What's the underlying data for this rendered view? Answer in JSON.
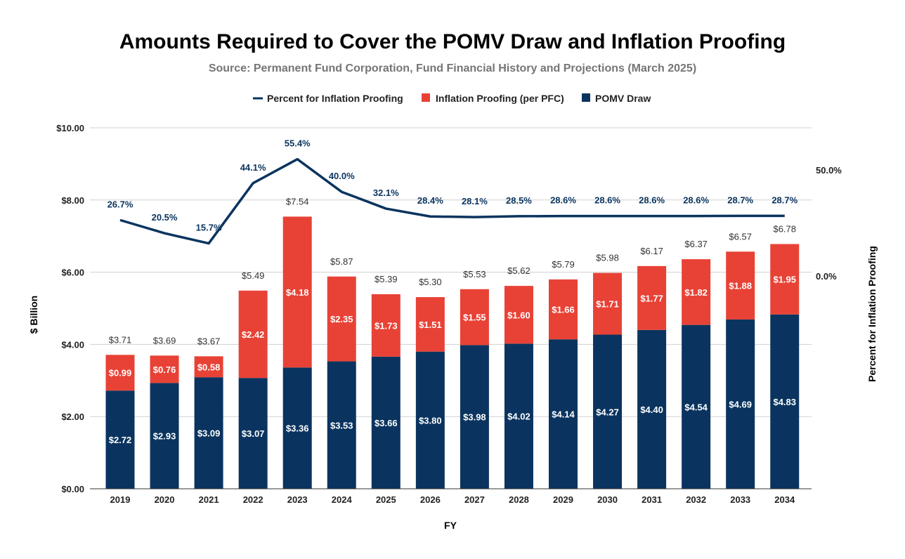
{
  "chart_data": {
    "type": "bar",
    "stacked": true,
    "title": "Amounts Required to Cover the POMV Draw and Inflation Proofing",
    "subtitle": "Source: Permanent Fund Corporation, Fund Financial History and Projections (March 2025)",
    "xlabel": "FY",
    "ylabel": "$ Billion",
    "y2label": "Percent for Inflation Proofing",
    "ylim": [
      0,
      10
    ],
    "y_ticks": [
      "$0.00",
      "$2.00",
      "$4.00",
      "$6.00",
      "$8.00",
      "$10.00"
    ],
    "y2_ticks": [
      "0.0%",
      "50.0%"
    ],
    "grid": true,
    "legend_position": "top",
    "categories": [
      "2019",
      "2020",
      "2021",
      "2022",
      "2023",
      "2024",
      "2025",
      "2026",
      "2027",
      "2028",
      "2029",
      "2030",
      "2031",
      "2032",
      "2033",
      "2034"
    ],
    "series": [
      {
        "name": "POMV Draw",
        "kind": "bar",
        "color": "#0a345f",
        "values": [
          2.72,
          2.93,
          3.09,
          3.07,
          3.36,
          3.53,
          3.66,
          3.8,
          3.98,
          4.02,
          4.14,
          4.27,
          4.4,
          4.54,
          4.69,
          4.83
        ],
        "labels": [
          "$2.72",
          "$2.93",
          "$3.09",
          "$3.07",
          "$3.36",
          "$3.53",
          "$3.66",
          "$3.80",
          "$3.98",
          "$4.02",
          "$4.14",
          "$4.27",
          "$4.40",
          "$4.54",
          "$4.69",
          "$4.83"
        ]
      },
      {
        "name": "Inflation Proofing (per PFC)",
        "kind": "bar",
        "color": "#e84236",
        "values": [
          0.99,
          0.76,
          0.58,
          2.42,
          4.18,
          2.35,
          1.73,
          1.51,
          1.55,
          1.6,
          1.66,
          1.71,
          1.77,
          1.82,
          1.88,
          1.95
        ],
        "labels": [
          "$0.99",
          "$0.76",
          "$0.58",
          "$2.42",
          "$4.18",
          "$2.35",
          "$1.73",
          "$1.51",
          "$1.55",
          "$1.60",
          "$1.66",
          "$1.71",
          "$1.77",
          "$1.82",
          "$1.88",
          "$1.95"
        ]
      },
      {
        "name": "Percent for Inflation Proofing",
        "kind": "line",
        "axis": "right",
        "color": "#0a345f",
        "values": [
          26.7,
          20.5,
          15.7,
          44.1,
          55.4,
          40.0,
          32.1,
          28.4,
          28.1,
          28.5,
          28.6,
          28.6,
          28.6,
          28.6,
          28.7,
          28.7
        ],
        "labels": [
          "26.7%",
          "20.5%",
          "15.7%",
          "44.1%",
          "55.4%",
          "40.0%",
          "32.1%",
          "28.4%",
          "28.1%",
          "28.5%",
          "28.6%",
          "28.6%",
          "28.6%",
          "28.6%",
          "28.7%",
          "28.7%"
        ]
      }
    ],
    "totals": [
      3.71,
      3.69,
      3.67,
      5.49,
      7.54,
      5.87,
      5.39,
      5.3,
      5.53,
      5.62,
      5.79,
      5.98,
      6.17,
      6.37,
      6.57,
      6.78
    ],
    "total_labels": [
      "$3.71",
      "$3.69",
      "$3.67",
      "$5.49",
      "$7.54",
      "$5.87",
      "$5.39",
      "$5.30",
      "$5.53",
      "$5.62",
      "$5.79",
      "$5.98",
      "$6.17",
      "$6.37",
      "$6.57",
      "$6.78"
    ]
  }
}
